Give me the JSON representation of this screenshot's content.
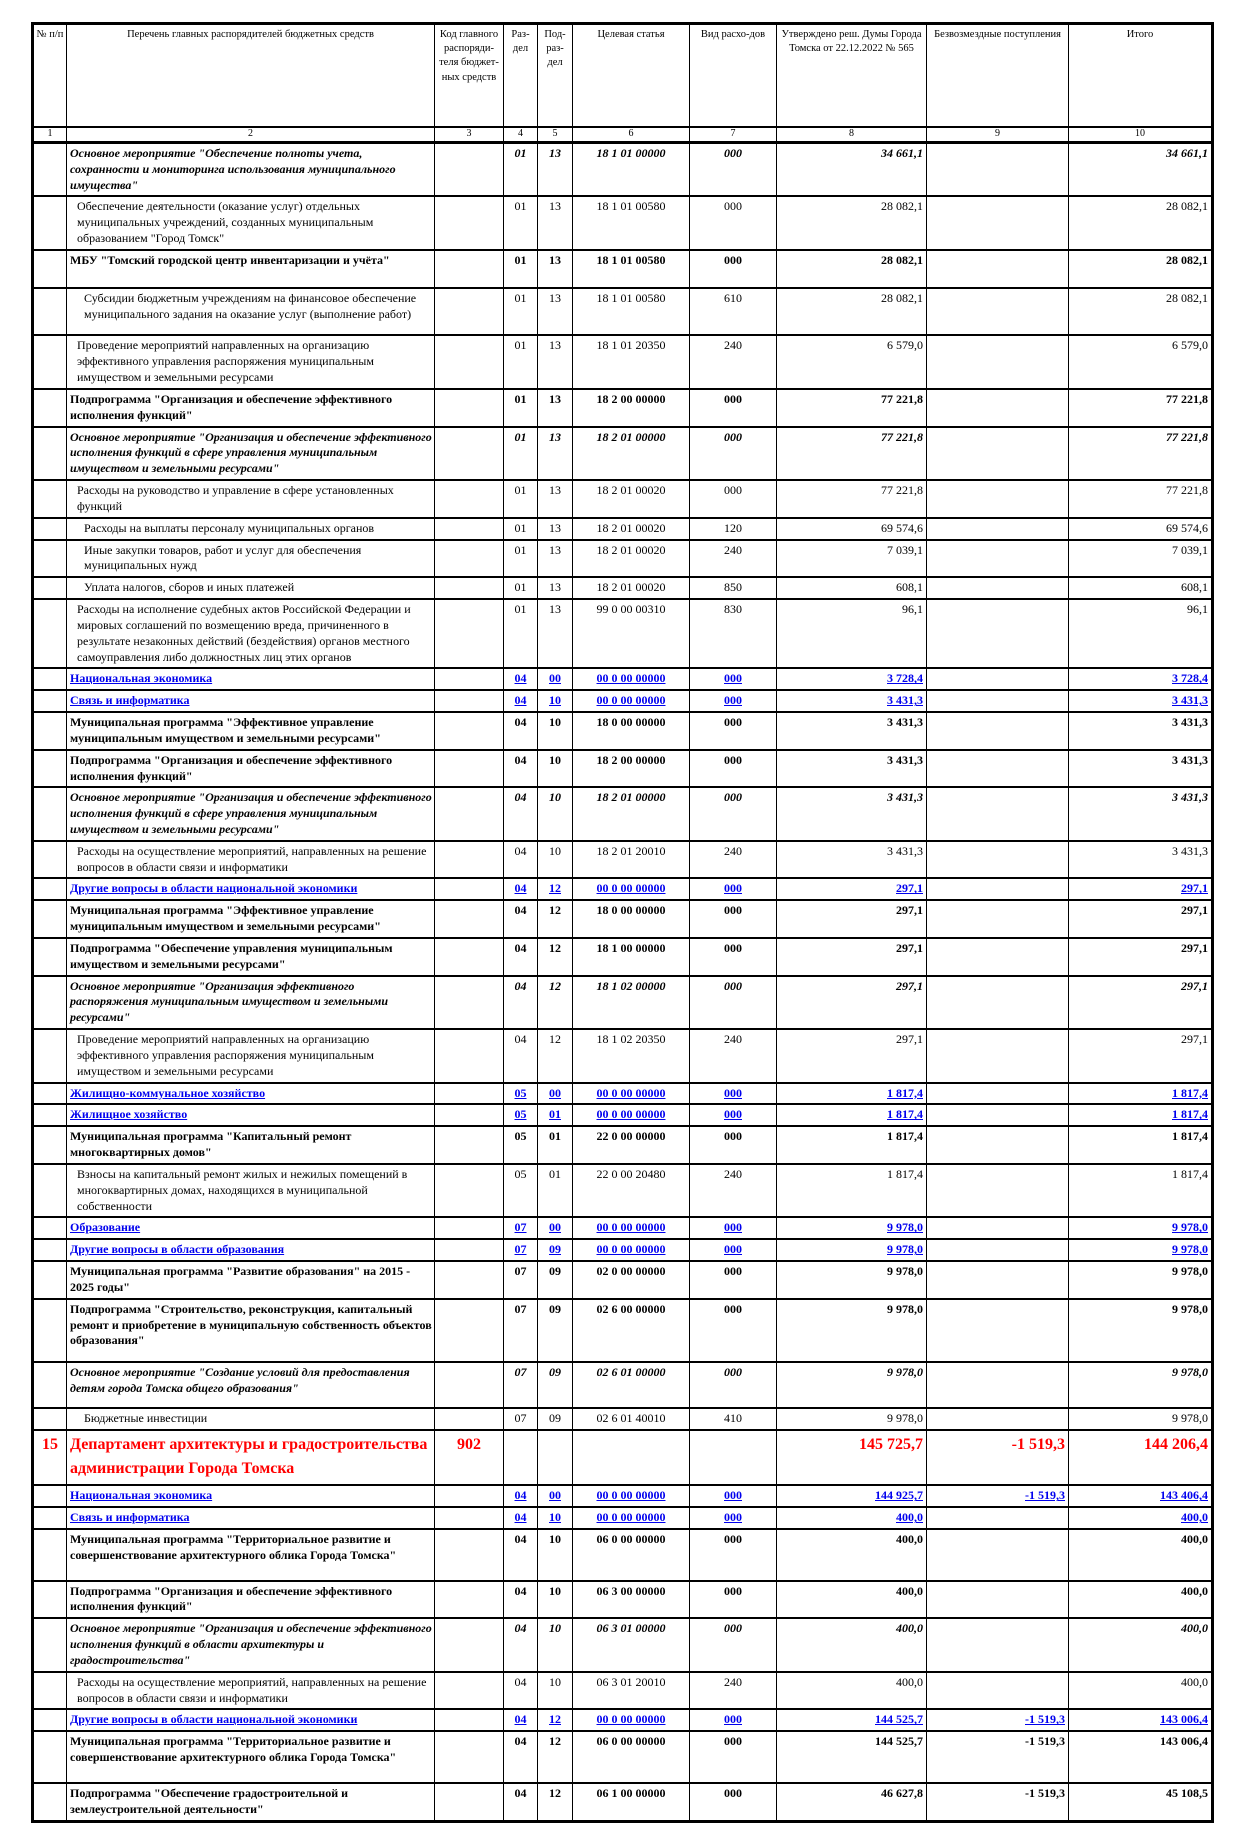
{
  "colors": {
    "section_blue": "#0000EE",
    "department_red": "#FF0000",
    "grid_black": "#000000",
    "page_background": "#FFFFFF"
  },
  "table": {
    "cols": [
      "№ п/п",
      "Перечень главных распорядителей бюджетных средств",
      "Код главного распоряди-теля бюджет-ных средств",
      "Раз-дел",
      "Под-раз-дел",
      "Целевая статья",
      "Вид расхо-дов",
      "Утверждено реш. Думы Города Томска от 22.12.2022 № 565",
      "Безвозмездные поступления",
      "Итого"
    ],
    "col_nums": [
      "1",
      "2",
      "3",
      "4",
      "5",
      "6",
      "7",
      "8",
      "9",
      "10"
    ],
    "rows": [
      {
        "num": "",
        "name": "Основное мероприятие \"Обеспечение полноты учета, сохранности и мониторинга использования муниципального имущества\"",
        "code": "",
        "rz": "01",
        "pr": "13",
        "cs": "18 1 01 00000",
        "vr": "000",
        "v8": "34 661,1",
        "v9": "",
        "v10": "34 661,1",
        "style": "bold-italic",
        "ind": 0,
        "pad": 0
      },
      {
        "num": "",
        "name": "Обеспечение деятельности (оказание услуг) отдельных муниципальных учреждений, созданных муниципальным образованием \"Город Томск\"",
        "code": "",
        "rz": "01",
        "pr": "13",
        "cs": "18 1 01 00580",
        "vr": "000",
        "v8": "28 082,1",
        "v9": "",
        "v10": "28 082,1",
        "style": "normal",
        "ind": 1,
        "pad": 0
      },
      {
        "num": "",
        "name": "МБУ \"Томский городской центр инвентаризации и учёта\"",
        "code": "",
        "rz": "01",
        "pr": "13",
        "cs": "18 1 01 00580",
        "vr": "000",
        "v8": "28 082,1",
        "v9": "",
        "v10": "28 082,1",
        "style": "bold",
        "ind": 0,
        "pad": 16
      },
      {
        "num": "",
        "name": "Субсидии бюджетным учреждениям на финансовое обеспечение муниципального задания на оказание услуг (выполнение работ)",
        "code": "",
        "rz": "01",
        "pr": "13",
        "cs": "18 1 01 00580",
        "vr": "610",
        "v8": "28 082,1",
        "v9": "",
        "v10": "28 082,1",
        "style": "normal",
        "ind": 2,
        "pad": 10
      },
      {
        "num": "",
        "name": "Проведение мероприятий направленных на организацию эффективного управления распоряжения муниципальным имуществом и земельными ресурсами",
        "code": "",
        "rz": "01",
        "pr": "13",
        "cs": "18 1 01 20350",
        "vr": "240",
        "v8": "6 579,0",
        "v9": "",
        "v10": "6 579,0",
        "style": "normal",
        "ind": 1,
        "pad": 0
      },
      {
        "num": "",
        "name": "Подпрограмма \"Организация и обеспечение эффективного исполнения функций\"",
        "code": "",
        "rz": "01",
        "pr": "13",
        "cs": "18 2 00 00000",
        "vr": "000",
        "v8": "77 221,8",
        "v9": "",
        "v10": "77 221,8",
        "style": "bold",
        "ind": 0,
        "pad": 0
      },
      {
        "num": "",
        "name": "Основное мероприятие \"Организация и обеспечение эффективного исполнения функций в сфере управления муниципальным имуществом и земельными ресурсами\"",
        "code": "",
        "rz": "01",
        "pr": "13",
        "cs": "18 2 01 00000",
        "vr": "000",
        "v8": "77 221,8",
        "v9": "",
        "v10": "77 221,8",
        "style": "bold-italic",
        "ind": 0,
        "pad": 0
      },
      {
        "num": "",
        "name": "Расходы на руководство и управление в сфере установленных функций",
        "code": "",
        "rz": "01",
        "pr": "13",
        "cs": "18 2 01 00020",
        "vr": "000",
        "v8": "77 221,8",
        "v9": "",
        "v10": "77 221,8",
        "style": "normal",
        "ind": 1,
        "pad": 0
      },
      {
        "num": "",
        "name": "Расходы на выплаты персоналу муниципальных органов",
        "code": "",
        "rz": "01",
        "pr": "13",
        "cs": "18 2 01 00020",
        "vr": "120",
        "v8": "69 574,6",
        "v9": "",
        "v10": "69 574,6",
        "style": "normal",
        "ind": 2,
        "pad": 0
      },
      {
        "num": "",
        "name": "Иные закупки товаров, работ и услуг для обеспечения муниципальных нужд",
        "code": "",
        "rz": "01",
        "pr": "13",
        "cs": "18 2 01 00020",
        "vr": "240",
        "v8": "7 039,1",
        "v9": "",
        "v10": "7 039,1",
        "style": "normal",
        "ind": 2,
        "pad": 0
      },
      {
        "num": "",
        "name": "Уплата налогов, сборов и иных платежей",
        "code": "",
        "rz": "01",
        "pr": "13",
        "cs": "18 2 01 00020",
        "vr": "850",
        "v8": "608,1",
        "v9": "",
        "v10": "608,1",
        "style": "normal",
        "ind": 2,
        "pad": 0
      },
      {
        "num": "",
        "name": "Расходы на исполнение судебных актов Российской Федерации и мировых соглашений по возмещению вреда, причиненного в результате незаконных действий (бездействия) органов местного самоуправления либо должностных лиц этих органов",
        "code": "",
        "rz": "01",
        "pr": "13",
        "cs": "99 0 00 00310",
        "vr": "830",
        "v8": "96,1",
        "v9": "",
        "v10": "96,1",
        "style": "normal",
        "ind": 1,
        "pad": 0
      },
      {
        "num": "",
        "name": "Национальная экономика",
        "code": "",
        "rz": "04",
        "pr": "00",
        "cs": "00 0 00 00000",
        "vr": "000",
        "v8": "3 728,4",
        "v9": "",
        "v10": "3 728,4",
        "style": "section",
        "ind": 0,
        "pad": 0
      },
      {
        "num": "",
        "name": "Связь и информатика",
        "code": "",
        "rz": "04",
        "pr": "10",
        "cs": "00 0 00 00000",
        "vr": "000",
        "v8": "3 431,3",
        "v9": "",
        "v10": "3 431,3",
        "style": "section",
        "ind": 0,
        "pad": 0
      },
      {
        "num": "",
        "name": "Муниципальная программа \"Эффективное управление муниципальным имуществом и земельными ресурсами\"",
        "code": "",
        "rz": "04",
        "pr": "10",
        "cs": "18 0 00 00000",
        "vr": "000",
        "v8": "3 431,3",
        "v9": "",
        "v10": "3 431,3",
        "style": "bold",
        "ind": 0,
        "pad": 0
      },
      {
        "num": "",
        "name": "Подпрограмма \"Организация и обеспечение эффективного исполнения функций\"",
        "code": "",
        "rz": "04",
        "pr": "10",
        "cs": "18 2 00 00000",
        "vr": "000",
        "v8": "3 431,3",
        "v9": "",
        "v10": "3 431,3",
        "style": "bold",
        "ind": 0,
        "pad": 0
      },
      {
        "num": "",
        "name": "Основное мероприятие \"Организация и обеспечение эффективного исполнения функций в сфере управления муниципальным имуществом и земельными ресурсами\"",
        "code": "",
        "rz": "04",
        "pr": "10",
        "cs": "18 2 01 00000",
        "vr": "000",
        "v8": "3 431,3",
        "v9": "",
        "v10": "3 431,3",
        "style": "bold-italic",
        "ind": 0,
        "pad": 0
      },
      {
        "num": "",
        "name": "Расходы на осуществление мероприятий, направленных на решение вопросов в области связи и информатики",
        "code": "",
        "rz": "04",
        "pr": "10",
        "cs": "18 2 01 20010",
        "vr": "240",
        "v8": "3 431,3",
        "v9": "",
        "v10": "3 431,3",
        "style": "normal",
        "ind": 1,
        "pad": 0
      },
      {
        "num": "",
        "name": "Другие вопросы в области национальной экономики",
        "code": "",
        "rz": "04",
        "pr": "12",
        "cs": "00 0 00 00000",
        "vr": "000",
        "v8": "297,1",
        "v9": "",
        "v10": "297,1",
        "style": "section",
        "ind": 0,
        "pad": 0
      },
      {
        "num": "",
        "name": "Муниципальная программа \"Эффективное управление муниципальным имуществом и земельными ресурсами\"",
        "code": "",
        "rz": "04",
        "pr": "12",
        "cs": "18 0 00 00000",
        "vr": "000",
        "v8": "297,1",
        "v9": "",
        "v10": "297,1",
        "style": "bold",
        "ind": 0,
        "pad": 0
      },
      {
        "num": "",
        "name": "Подпрограмма \"Обеспечение управления муниципальным имуществом и земельными ресурсами\"",
        "code": "",
        "rz": "04",
        "pr": "12",
        "cs": "18 1 00 00000",
        "vr": "000",
        "v8": "297,1",
        "v9": "",
        "v10": "297,1",
        "style": "bold",
        "ind": 0,
        "pad": 0
      },
      {
        "num": "",
        "name": "Основное мероприятие \"Организация эффективного распоряжения муниципальным имуществом и земельными ресурсами\"",
        "code": "",
        "rz": "04",
        "pr": "12",
        "cs": "18 1 02 00000",
        "vr": "000",
        "v8": "297,1",
        "v9": "",
        "v10": "297,1",
        "style": "bold-italic",
        "ind": 0,
        "pad": 0
      },
      {
        "num": "",
        "name": "Проведение мероприятий направленных на организацию эффективного управления распоряжения муниципальным имуществом и земельными ресурсами",
        "code": "",
        "rz": "04",
        "pr": "12",
        "cs": "18 1 02 20350",
        "vr": "240",
        "v8": "297,1",
        "v9": "",
        "v10": "297,1",
        "style": "normal",
        "ind": 1,
        "pad": 0
      },
      {
        "num": "",
        "name": "Жилищно-коммунальное хозяйство",
        "code": "",
        "rz": "05",
        "pr": "00",
        "cs": "00 0 00 00000",
        "vr": "000",
        "v8": "1 817,4",
        "v9": "",
        "v10": "1 817,4",
        "style": "section",
        "ind": 0,
        "pad": 0
      },
      {
        "num": "",
        "name": "Жилищное хозяйство",
        "code": "",
        "rz": "05",
        "pr": "01",
        "cs": "00 0 00 00000",
        "vr": "000",
        "v8": "1 817,4",
        "v9": "",
        "v10": "1 817,4",
        "style": "section",
        "ind": 0,
        "pad": 0
      },
      {
        "num": "",
        "name": "Муниципальная программа \"Капитальный ремонт многоквартирных домов\"",
        "code": "",
        "rz": "05",
        "pr": "01",
        "cs": "22 0 00 00000",
        "vr": "000",
        "v8": "1 817,4",
        "v9": "",
        "v10": "1 817,4",
        "style": "bold",
        "ind": 0,
        "pad": 0
      },
      {
        "num": "",
        "name": "Взносы на капитальный ремонт жилых и нежилых помещений в многоквартирных домах, находящихся в муниципальной собственности",
        "code": "",
        "rz": "05",
        "pr": "01",
        "cs": "22 0 00 20480",
        "vr": "240",
        "v8": "1 817,4",
        "v9": "",
        "v10": "1 817,4",
        "style": "normal",
        "ind": 1,
        "pad": 0
      },
      {
        "num": "",
        "name": "Образование",
        "code": "",
        "rz": "07",
        "pr": "00",
        "cs": "00 0 00 00000",
        "vr": "000",
        "v8": "9 978,0",
        "v9": "",
        "v10": "9 978,0",
        "style": "section",
        "ind": 0,
        "pad": 0
      },
      {
        "num": "",
        "name": "Другие вопросы в области образования",
        "code": "",
        "rz": "07",
        "pr": "09",
        "cs": "00 0 00 00000",
        "vr": "000",
        "v8": "9 978,0",
        "v9": "",
        "v10": "9 978,0",
        "style": "section",
        "ind": 0,
        "pad": 0
      },
      {
        "num": "",
        "name": "Муниципальная программа \"Развитие образования\" на 2015 - 2025 годы\"",
        "code": "",
        "rz": "07",
        "pr": "09",
        "cs": "02 0 00 00000",
        "vr": "000",
        "v8": "9 978,0",
        "v9": "",
        "v10": "9 978,0",
        "style": "bold",
        "ind": 0,
        "pad": 0
      },
      {
        "num": "",
        "name": "Подпрограмма \"Строительство, реконструкция, капитальный ремонт и приобретение в муниципальную собственность объектов образования\"",
        "code": "",
        "rz": "07",
        "pr": "09",
        "cs": "02 6 00 00000",
        "vr": "000",
        "v8": "9 978,0",
        "v9": "",
        "v10": "9 978,0",
        "style": "bold",
        "ind": 0,
        "pad": 10
      },
      {
        "num": "",
        "name": "Основное мероприятие \"Создание условий для предоставления детям города Томска общего образования\"",
        "code": "",
        "rz": "07",
        "pr": "09",
        "cs": "02 6 01 00000",
        "vr": "000",
        "v8": "9 978,0",
        "v9": "",
        "v10": "9 978,0",
        "style": "bold-italic",
        "ind": 0,
        "pad": 8
      },
      {
        "num": "",
        "name": "Бюджетные инвестиции",
        "code": "",
        "rz": "07",
        "pr": "09",
        "cs": "02 6 01 40010",
        "vr": "410",
        "v8": "9 978,0",
        "v9": "",
        "v10": "9 978,0",
        "style": "normal",
        "ind": 2,
        "pad": 0
      },
      {
        "num": "15",
        "name": "Департамент архитектуры и градостроительства администрации Города Томска",
        "code": "902",
        "rz": "",
        "pr": "",
        "cs": "",
        "vr": "",
        "v8": "145 725,7",
        "v9": "-1 519,3",
        "v10": "144 206,4",
        "style": "department",
        "ind": 0,
        "pad": 0
      },
      {
        "num": "",
        "name": "Национальная экономика",
        "code": "",
        "rz": "04",
        "pr": "00",
        "cs": "00 0 00 00000",
        "vr": "000",
        "v8": "144 925,7",
        "v9": "-1 519,3",
        "v10": "143 406,4",
        "style": "section",
        "ind": 0,
        "pad": 0
      },
      {
        "num": "",
        "name": "Связь и информатика",
        "code": "",
        "rz": "04",
        "pr": "10",
        "cs": "00 0 00 00000",
        "vr": "000",
        "v8": "400,0",
        "v9": "",
        "v10": "400,0",
        "style": "section",
        "ind": 0,
        "pad": 0
      },
      {
        "num": "",
        "name": "Муниципальная программа \"Территориальное развитие и совершенствование архитектурного облика Города Томска\"",
        "code": "",
        "rz": "04",
        "pr": "10",
        "cs": "06 0 00 00000",
        "vr": "000",
        "v8": "400,0",
        "v9": "",
        "v10": "400,0",
        "style": "bold",
        "ind": 0,
        "pad": 14
      },
      {
        "num": "",
        "name": "Подпрограмма \"Организация и обеспечение эффективного исполнения функций\"",
        "code": "",
        "rz": "04",
        "pr": "10",
        "cs": "06 3 00 00000",
        "vr": "000",
        "v8": "400,0",
        "v9": "",
        "v10": "400,0",
        "style": "bold",
        "ind": 0,
        "pad": 0
      },
      {
        "num": "",
        "name": "Основное мероприятие \"Организация и обеспечение эффективного исполнения функций в области архитектуры и градостроительства\"",
        "code": "",
        "rz": "04",
        "pr": "10",
        "cs": "06 3 01 00000",
        "vr": "000",
        "v8": "400,0",
        "v9": "",
        "v10": "400,0",
        "style": "bold-italic",
        "ind": 0,
        "pad": 0
      },
      {
        "num": "",
        "name": "Расходы на осуществление мероприятий, направленных на решение вопросов в области связи и информатики",
        "code": "",
        "rz": "04",
        "pr": "10",
        "cs": "06 3 01 20010",
        "vr": "240",
        "v8": "400,0",
        "v9": "",
        "v10": "400,0",
        "style": "normal",
        "ind": 1,
        "pad": 0
      },
      {
        "num": "",
        "name": "Другие вопросы в области национальной экономики",
        "code": "",
        "rz": "04",
        "pr": "12",
        "cs": "00 0 00 00000",
        "vr": "000",
        "v8": "144 525,7",
        "v9": "-1 519,3",
        "v10": "143 006,4",
        "style": "section",
        "ind": 0,
        "pad": 0
      },
      {
        "num": "",
        "name": "Муниципальная программа \"Территориальное развитие и совершенствование архитектурного облика Города Томска\"",
        "code": "",
        "rz": "04",
        "pr": "12",
        "cs": "06 0 00 00000",
        "vr": "000",
        "v8": "144 525,7",
        "v9": "-1 519,3",
        "v10": "143 006,4",
        "style": "bold",
        "ind": 0,
        "pad": 14
      },
      {
        "num": "",
        "name": "Подпрограмма \"Обеспечение градостроительной и землеустроительной деятельности\"",
        "code": "",
        "rz": "04",
        "pr": "12",
        "cs": "06 1 00 00000",
        "vr": "000",
        "v8": "46 627,8",
        "v9": "-1 519,3",
        "v10": "45 108,5",
        "style": "bold",
        "ind": 0,
        "pad": 0
      }
    ]
  }
}
